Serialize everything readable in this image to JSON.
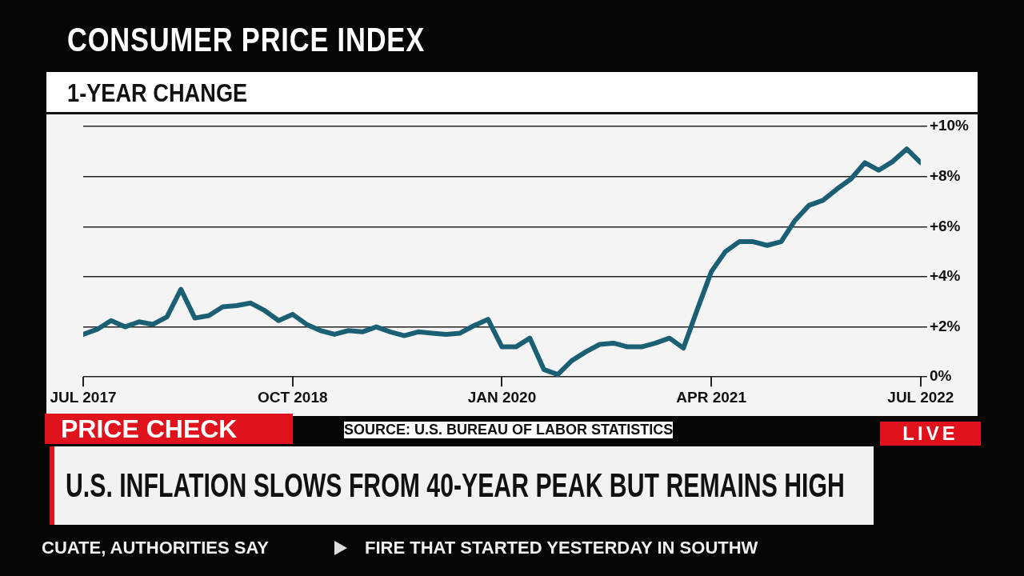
{
  "chart_data": {
    "type": "line",
    "title": "CONSUMER PRICE INDEX",
    "subtitle": "1-YEAR CHANGE",
    "x": [
      "2017-07",
      "2017-08",
      "2017-09",
      "2017-10",
      "2017-11",
      "2017-12",
      "2018-01",
      "2018-02",
      "2018-03",
      "2018-04",
      "2018-05",
      "2018-06",
      "2018-07",
      "2018-08",
      "2018-09",
      "2018-10",
      "2018-11",
      "2018-12",
      "2019-01",
      "2019-02",
      "2019-03",
      "2019-04",
      "2019-05",
      "2019-06",
      "2019-07",
      "2019-08",
      "2019-09",
      "2019-10",
      "2019-11",
      "2019-12",
      "2020-01",
      "2020-02",
      "2020-03",
      "2020-04",
      "2020-05",
      "2020-06",
      "2020-07",
      "2020-08",
      "2020-09",
      "2020-10",
      "2020-11",
      "2020-12",
      "2021-01",
      "2021-02",
      "2021-03",
      "2021-04",
      "2021-05",
      "2021-06",
      "2021-07",
      "2021-08",
      "2021-09",
      "2021-10",
      "2021-11",
      "2021-12",
      "2022-01",
      "2022-02",
      "2022-03",
      "2022-04",
      "2022-05",
      "2022-06",
      "2022-07"
    ],
    "series": [
      {
        "color": "#1b5f74",
        "values": [
          1.7,
          1.9,
          2.25,
          2.0,
          2.2,
          2.1,
          2.4,
          3.5,
          2.35,
          2.45,
          2.8,
          2.85,
          2.95,
          2.65,
          2.25,
          2.5,
          2.1,
          1.85,
          1.7,
          1.85,
          1.8,
          2.0,
          1.8,
          1.65,
          1.8,
          1.75,
          1.7,
          1.75,
          2.05,
          2.3,
          1.2,
          1.2,
          1.55,
          0.3,
          0.1,
          0.65,
          1.0,
          1.3,
          1.35,
          1.2,
          1.2,
          1.35,
          1.55,
          1.15,
          2.7,
          4.2,
          5.0,
          5.4,
          5.4,
          5.25,
          5.4,
          6.25,
          6.85,
          7.05,
          7.5,
          7.9,
          8.55,
          8.25,
          8.6,
          9.1,
          8.55
        ]
      }
    ],
    "xlim": [
      "2017-07",
      "2022-07"
    ],
    "xticks": [
      {
        "value": "2017-07",
        "label": "JUL 2017"
      },
      {
        "value": "2018-10",
        "label": "OCT 2018"
      },
      {
        "value": "2020-01",
        "label": "JAN 2020"
      },
      {
        "value": "2021-04",
        "label": "APR 2021"
      },
      {
        "value": "2022-07",
        "label": "JUL 2022"
      }
    ],
    "ylim": [
      0,
      10
    ],
    "yticks": [
      {
        "value": 0,
        "label": "0%"
      },
      {
        "value": 2,
        "label": "+2%"
      },
      {
        "value": 4,
        "label": "+4%"
      },
      {
        "value": 6,
        "label": "+6%"
      },
      {
        "value": 8,
        "label": "+8%"
      },
      {
        "value": 10,
        "label": "+10%"
      }
    ],
    "grid": "y",
    "marker": "none",
    "line_style": "solid",
    "legend": false,
    "annotations": [
      "SOURCE: U.S. BUREAU OF LABOR STATISTICS",
      "PRICE CHECK",
      "U.S. INFLATION SLOWS FROM 40-YEAR PEAK BUT REMAINS HIGH",
      "LIVE",
      "CUATE, AUTHORITIES SAY",
      "FIRE THAT STARTED YESTERDAY IN SOUTHW"
    ]
  }
}
